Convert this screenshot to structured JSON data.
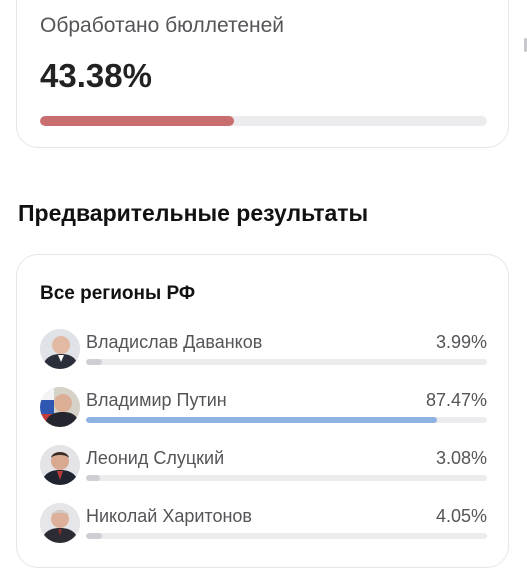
{
  "processed": {
    "label": "Обработано бюллетеней",
    "value_text": "43.38%",
    "progress": 0.4338,
    "bar_color": "#c86e6e"
  },
  "section_title": "Предварительные результаты",
  "results": {
    "subtitle": "Все регионы РФ",
    "candidates": [
      {
        "name": "Владислав Даванков",
        "percent_text": "3.99%",
        "percent": 3.99,
        "leader": false
      },
      {
        "name": "Владимир Путин",
        "percent_text": "87.47%",
        "percent": 87.47,
        "leader": true
      },
      {
        "name": "Леонид Слуцкий",
        "percent_text": "3.08%",
        "percent": 3.08,
        "leader": false
      },
      {
        "name": "Николай Харитонов",
        "percent_text": "4.05%",
        "percent": 4.05,
        "leader": false
      }
    ]
  },
  "colors": {
    "leader_bar": "#8fb4e3",
    "other_bar": "#cfcfd3",
    "track": "#ececee"
  }
}
